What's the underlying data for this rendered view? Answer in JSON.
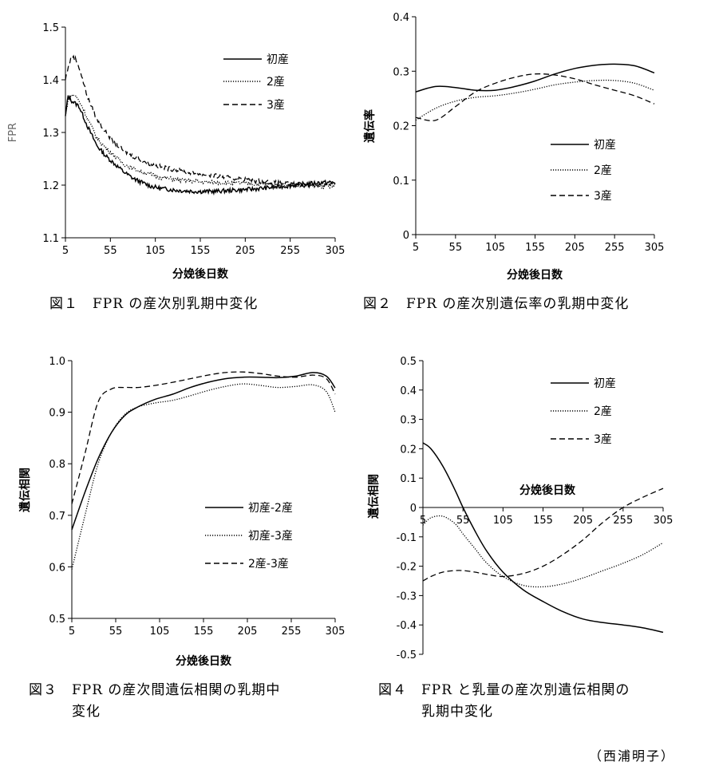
{
  "chart_data": [
    {
      "type": "line",
      "xlabel": "分娩後日数",
      "ylabel": "FPR",
      "xlim": [
        5,
        305
      ],
      "ylim": [
        1.1,
        1.5
      ],
      "xticks": [
        "5",
        "55",
        "105",
        "155",
        "205",
        "255",
        "305"
      ],
      "yticks": [
        "1.1",
        "1.2",
        "1.3",
        "1.4",
        "1.5"
      ],
      "legend_position": "top-right",
      "series": [
        {
          "name": "初産",
          "style": "solid",
          "x": [
            5,
            8,
            12,
            16,
            20,
            25,
            30,
            40,
            50,
            60,
            70,
            80,
            90,
            100,
            110,
            130,
            150,
            170,
            190,
            210,
            230,
            250,
            270,
            290,
            305
          ],
          "values": [
            1.33,
            1.37,
            1.36,
            1.355,
            1.35,
            1.33,
            1.31,
            1.275,
            1.255,
            1.24,
            1.225,
            1.213,
            1.205,
            1.198,
            1.194,
            1.19,
            1.188,
            1.188,
            1.19,
            1.192,
            1.195,
            1.198,
            1.202,
            1.205,
            1.205
          ]
        },
        {
          "name": "2産",
          "style": "dotted",
          "x": [
            5,
            8,
            12,
            16,
            20,
            25,
            30,
            40,
            50,
            60,
            70,
            80,
            90,
            100,
            110,
            130,
            150,
            170,
            190,
            210,
            230,
            250,
            270,
            290,
            305
          ],
          "values": [
            1.33,
            1.365,
            1.37,
            1.37,
            1.36,
            1.345,
            1.325,
            1.29,
            1.27,
            1.255,
            1.24,
            1.232,
            1.225,
            1.22,
            1.215,
            1.21,
            1.207,
            1.205,
            1.204,
            1.203,
            1.202,
            1.2,
            1.199,
            1.198,
            1.197
          ]
        },
        {
          "name": "3産",
          "style": "dashed",
          "x": [
            5,
            8,
            12,
            16,
            20,
            25,
            30,
            40,
            50,
            60,
            70,
            80,
            90,
            100,
            110,
            130,
            150,
            170,
            190,
            210,
            230,
            250,
            270,
            290,
            305
          ],
          "values": [
            1.4,
            1.425,
            1.445,
            1.44,
            1.425,
            1.395,
            1.365,
            1.325,
            1.3,
            1.28,
            1.265,
            1.255,
            1.247,
            1.24,
            1.235,
            1.228,
            1.222,
            1.218,
            1.213,
            1.21,
            1.206,
            1.203,
            1.2,
            1.2,
            1.2
          ]
        }
      ]
    },
    {
      "type": "line",
      "xlabel": "分娩後日数",
      "ylabel": "遺伝率",
      "xlim": [
        5,
        305
      ],
      "ylim": [
        0,
        0.4
      ],
      "xticks": [
        "5",
        "55",
        "105",
        "155",
        "205",
        "255",
        "305"
      ],
      "yticks": [
        "0",
        "0.1",
        "0.2",
        "0.3",
        "0.4"
      ],
      "legend_position": "right",
      "series": [
        {
          "name": "初産",
          "style": "solid",
          "x": [
            5,
            30,
            55,
            80,
            105,
            130,
            155,
            180,
            205,
            230,
            255,
            280,
            305
          ],
          "values": [
            0.262,
            0.272,
            0.27,
            0.265,
            0.265,
            0.272,
            0.282,
            0.295,
            0.305,
            0.311,
            0.313,
            0.31,
            0.297
          ]
        },
        {
          "name": "2産",
          "style": "dotted",
          "x": [
            5,
            30,
            55,
            80,
            105,
            130,
            155,
            180,
            205,
            230,
            255,
            280,
            305
          ],
          "values": [
            0.21,
            0.232,
            0.245,
            0.252,
            0.255,
            0.26,
            0.267,
            0.275,
            0.28,
            0.283,
            0.283,
            0.278,
            0.265
          ]
        },
        {
          "name": "3産",
          "style": "dashed",
          "x": [
            5,
            30,
            55,
            80,
            105,
            130,
            155,
            180,
            205,
            230,
            255,
            280,
            305
          ],
          "values": [
            0.215,
            0.21,
            0.235,
            0.262,
            0.278,
            0.289,
            0.295,
            0.293,
            0.286,
            0.275,
            0.265,
            0.255,
            0.24
          ]
        }
      ]
    },
    {
      "type": "line",
      "xlabel": "分娩後日数",
      "ylabel": "遺伝相関",
      "xlim": [
        5,
        305
      ],
      "ylim": [
        0.5,
        1.0
      ],
      "xticks": [
        "5",
        "55",
        "105",
        "155",
        "205",
        "255",
        "305"
      ],
      "yticks": [
        "0.5",
        "0.6",
        "0.7",
        "0.8",
        "0.9",
        "1.0"
      ],
      "legend_position": "right",
      "series": [
        {
          "name": "初産-2産",
          "style": "solid",
          "x": [
            5,
            20,
            35,
            50,
            65,
            80,
            100,
            120,
            140,
            160,
            180,
            200,
            220,
            240,
            260,
            280,
            295,
            305
          ],
          "values": [
            0.672,
            0.745,
            0.81,
            0.86,
            0.893,
            0.91,
            0.925,
            0.935,
            0.948,
            0.958,
            0.965,
            0.968,
            0.968,
            0.967,
            0.97,
            0.977,
            0.97,
            0.947
          ]
        },
        {
          "name": "初産-3産",
          "style": "dotted",
          "x": [
            5,
            20,
            35,
            50,
            65,
            80,
            100,
            120,
            140,
            160,
            180,
            200,
            220,
            240,
            260,
            280,
            295,
            305
          ],
          "values": [
            0.595,
            0.7,
            0.8,
            0.86,
            0.895,
            0.91,
            0.918,
            0.923,
            0.932,
            0.942,
            0.95,
            0.955,
            0.952,
            0.948,
            0.95,
            0.953,
            0.94,
            0.9
          ]
        },
        {
          "name": "2産-3産",
          "style": "dashed",
          "x": [
            5,
            20,
            35,
            50,
            65,
            80,
            100,
            120,
            140,
            160,
            180,
            200,
            220,
            240,
            260,
            280,
            295,
            305
          ],
          "values": [
            0.722,
            0.82,
            0.92,
            0.945,
            0.948,
            0.948,
            0.952,
            0.958,
            0.965,
            0.972,
            0.977,
            0.978,
            0.975,
            0.97,
            0.968,
            0.972,
            0.965,
            0.935
          ]
        }
      ]
    },
    {
      "type": "line",
      "xlabel": "分娩後日数",
      "ylabel": "遺伝相関",
      "xlim": [
        5,
        305
      ],
      "ylim": [
        -0.5,
        0.5
      ],
      "xticks": [
        "5",
        "55",
        "105",
        "155",
        "205",
        "255",
        "305"
      ],
      "yticks": [
        "-0.5",
        "-0.4",
        "-0.3",
        "-0.2",
        "-0.1",
        "0",
        "0.1",
        "0.2",
        "0.3",
        "0.4",
        "0.5"
      ],
      "legend_position": "top-right",
      "series": [
        {
          "name": "初産",
          "style": "solid",
          "x": [
            5,
            15,
            30,
            45,
            55,
            70,
            85,
            105,
            130,
            155,
            180,
            205,
            230,
            255,
            280,
            305
          ],
          "values": [
            0.22,
            0.2,
            0.14,
            0.06,
            0.0,
            -0.08,
            -0.15,
            -0.22,
            -0.28,
            -0.32,
            -0.355,
            -0.38,
            -0.392,
            -0.4,
            -0.41,
            -0.425
          ]
        },
        {
          "name": "2産",
          "style": "dotted",
          "x": [
            5,
            15,
            30,
            45,
            55,
            70,
            85,
            105,
            130,
            155,
            180,
            205,
            230,
            255,
            280,
            305
          ],
          "values": [
            -0.06,
            -0.035,
            -0.03,
            -0.055,
            -0.09,
            -0.14,
            -0.19,
            -0.235,
            -0.265,
            -0.27,
            -0.26,
            -0.24,
            -0.215,
            -0.19,
            -0.16,
            -0.12
          ]
        },
        {
          "name": "3産",
          "style": "dashed",
          "x": [
            5,
            15,
            30,
            45,
            55,
            70,
            85,
            105,
            130,
            155,
            180,
            205,
            230,
            255,
            280,
            305
          ],
          "values": [
            -0.25,
            -0.235,
            -0.22,
            -0.215,
            -0.215,
            -0.22,
            -0.228,
            -0.235,
            -0.225,
            -0.2,
            -0.16,
            -0.11,
            -0.05,
            0.0,
            0.035,
            0.065
          ]
        }
      ]
    }
  ],
  "captions": [
    "図１　FPR の産次別乳期中変化",
    "図２　FPR の産次別遺伝率の乳期中変化",
    "図３　FPR の産次間遺伝相関の乳期中\n　　　変化",
    "図４　FPR と乳量の産次別遺伝相関の\n　　　乳期中変化"
  ],
  "author": "（西浦明子）"
}
